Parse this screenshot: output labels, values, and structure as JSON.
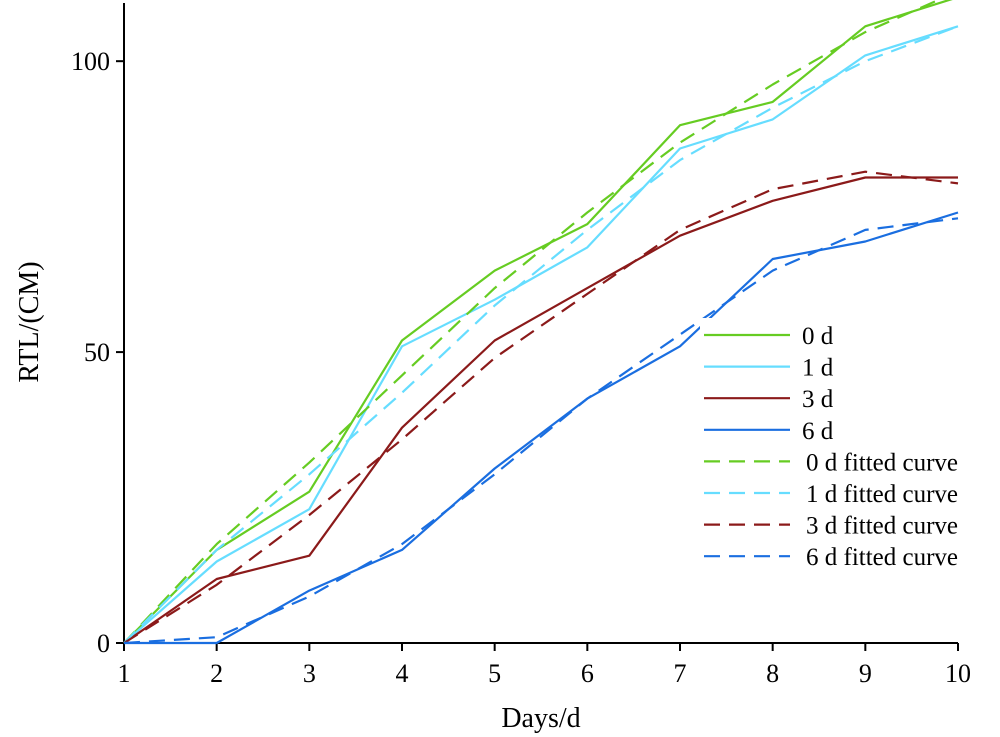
{
  "chart_data": {
    "type": "line",
    "title": "",
    "xlabel": "Days/d",
    "ylabel": "RTL/(CM)",
    "xlim": [
      1,
      10
    ],
    "ylim": [
      0,
      110
    ],
    "xticks": [
      "1",
      "2",
      "3",
      "4",
      "5",
      "6",
      "7",
      "8",
      "9",
      "10"
    ],
    "yticks": [
      "0",
      "50",
      "100"
    ],
    "grid": false,
    "legend_position": "right",
    "x": [
      1,
      2,
      3,
      4,
      5,
      6,
      7,
      8,
      9,
      10
    ],
    "series": [
      {
        "name": "0 d",
        "style": "solid",
        "color": "#66cc22",
        "values": [
          0,
          16,
          26,
          52,
          64,
          72,
          89,
          93,
          106,
          111
        ]
      },
      {
        "name": "1 d",
        "style": "solid",
        "color": "#66ddff",
        "values": [
          0,
          14,
          23,
          51,
          59,
          68,
          85,
          90,
          101,
          106
        ]
      },
      {
        "name": "3 d",
        "style": "solid",
        "color": "#8b1a1a",
        "values": [
          0,
          11,
          15,
          37,
          52,
          61,
          70,
          76,
          80,
          80
        ]
      },
      {
        "name": "6 d",
        "style": "solid",
        "color": "#1a6ee0",
        "values": [
          0,
          0,
          9,
          16,
          30,
          42,
          51,
          66,
          69,
          74
        ]
      },
      {
        "name": "0 d fitted curve",
        "style": "dashed",
        "color": "#66cc22",
        "values": [
          0,
          17,
          31,
          46,
          61,
          74,
          86,
          96,
          105,
          112
        ]
      },
      {
        "name": "1 d fitted curve",
        "style": "dashed",
        "color": "#66ddff",
        "values": [
          0,
          16,
          29,
          43,
          58,
          71,
          83,
          92,
          100,
          106
        ]
      },
      {
        "name": "3 d fitted curve",
        "style": "dashed",
        "color": "#8b1a1a",
        "values": [
          0,
          10,
          22,
          35,
          49,
          60,
          71,
          78,
          81,
          79
        ]
      },
      {
        "name": "6 d fitted curve",
        "style": "dashed",
        "color": "#1a6ee0",
        "values": [
          0,
          1,
          8,
          17,
          29,
          42,
          53,
          64,
          71,
          73
        ]
      }
    ]
  }
}
